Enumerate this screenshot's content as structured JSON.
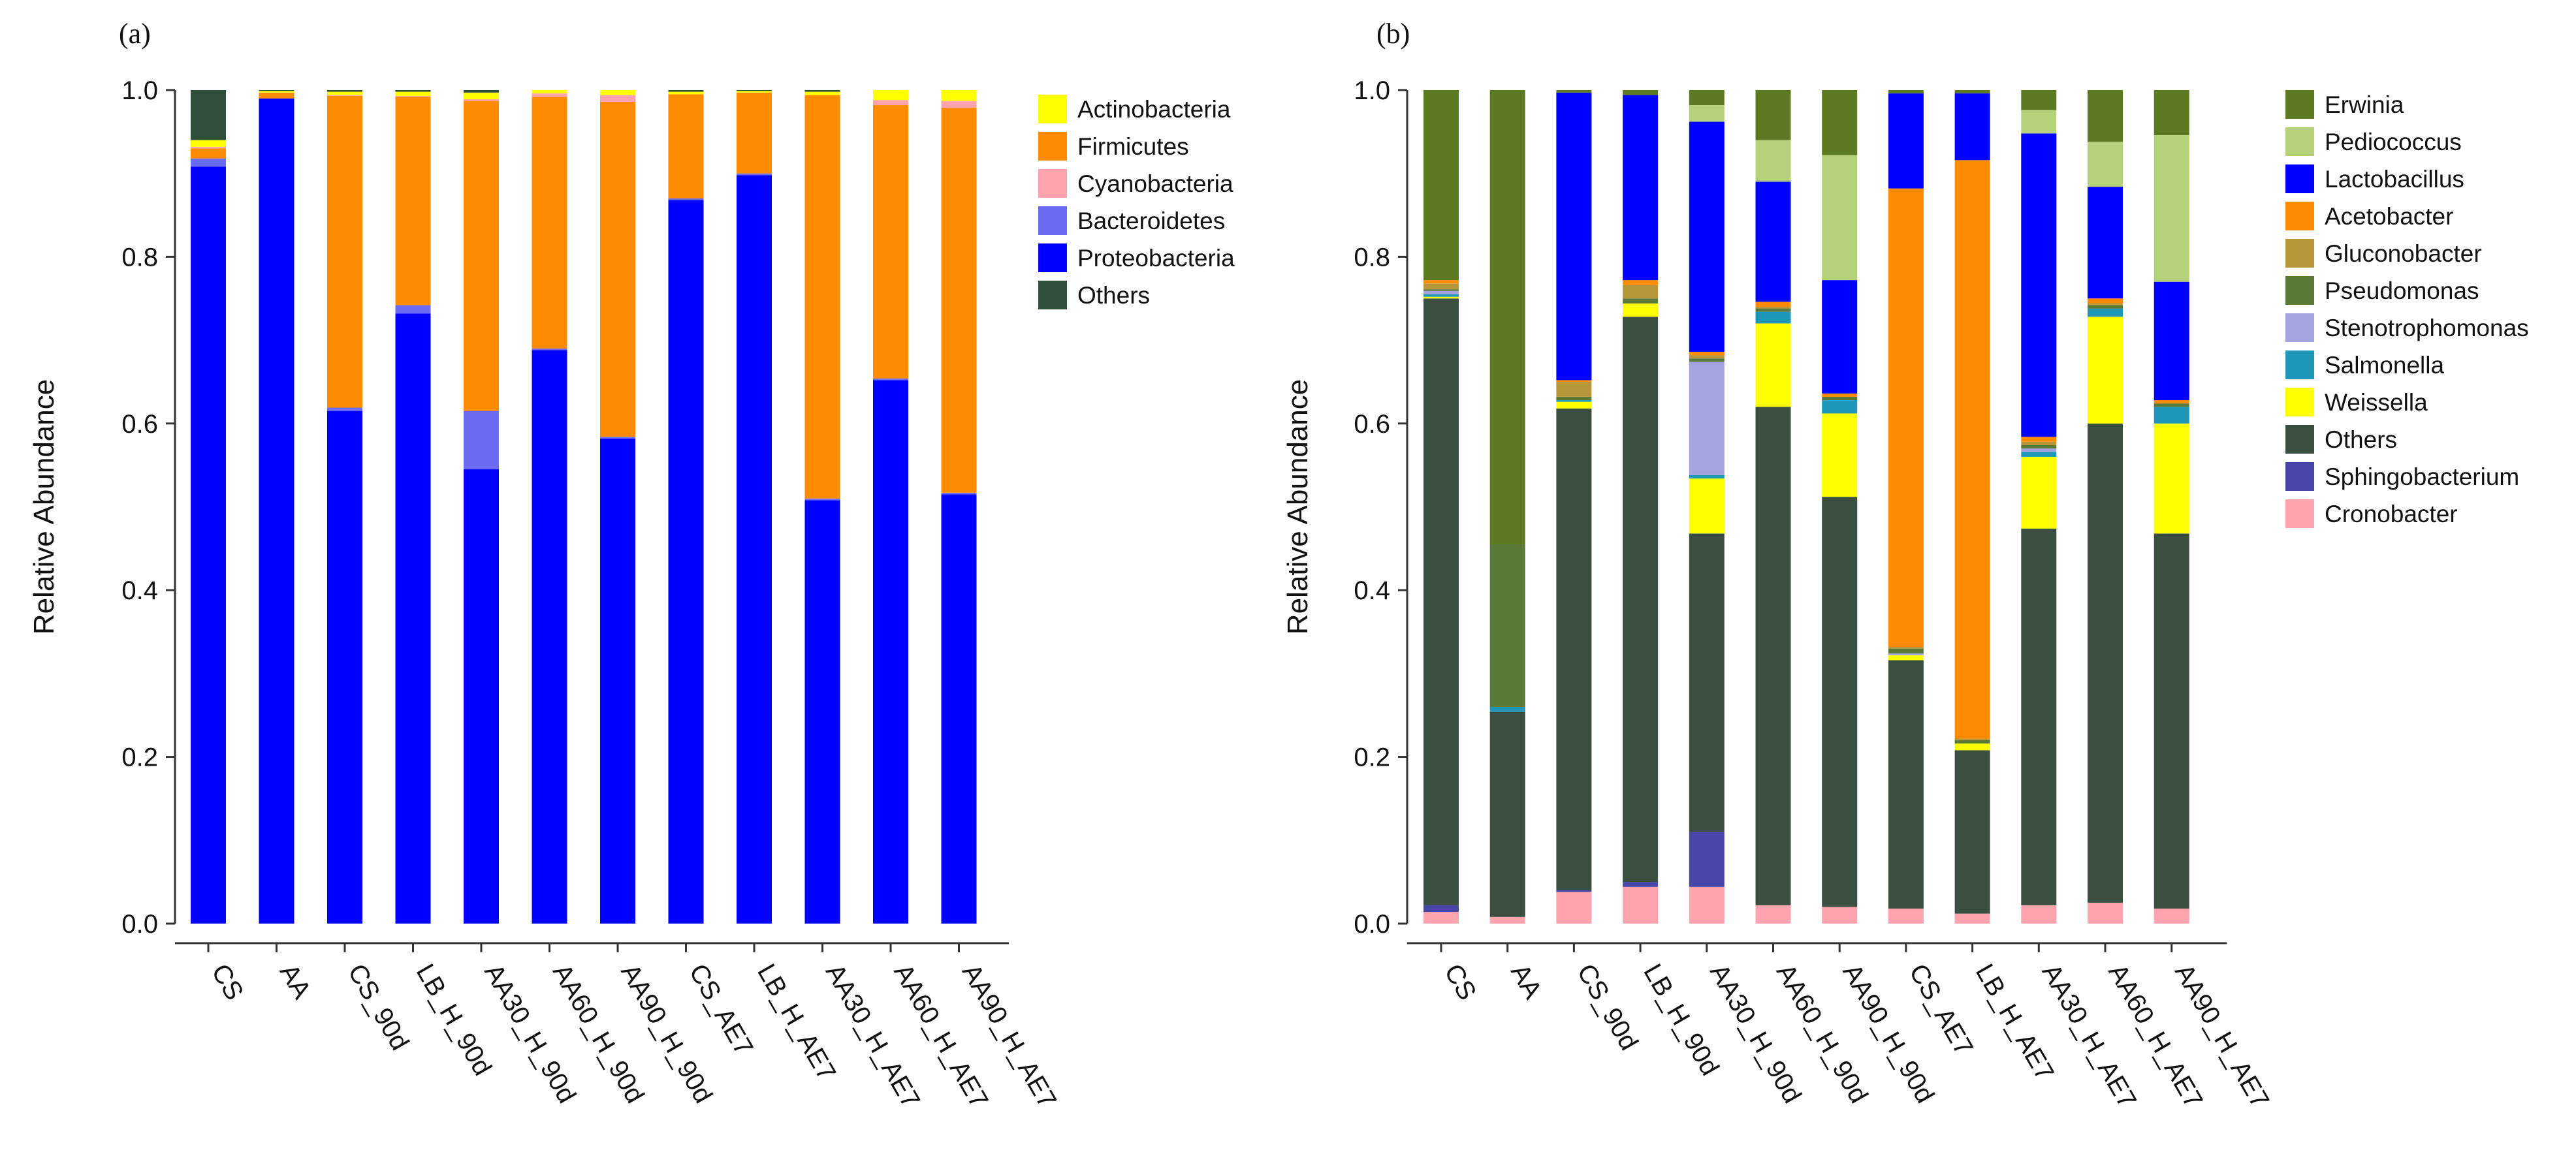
{
  "chart_data": [
    {
      "panel": "(a)",
      "type": "stacked-bar",
      "title": "",
      "xlabel": "",
      "ylabel": "Relative Abundance",
      "ylim": [
        0,
        1.0
      ],
      "yticks": [
        "0.0",
        "0.2",
        "0.4",
        "0.6",
        "0.8",
        "1.0"
      ],
      "categories": [
        "CS",
        "AA",
        "CS_90d",
        "LB_H_90d",
        "AA30_H_90d",
        "AA60_H_90d",
        "AA90_H_90d",
        "CS_AE7",
        "LB_H_AE7",
        "AA30_H_AE7",
        "AA60_H_AE7",
        "AA90_H_AE7"
      ],
      "legend_position": "right",
      "series": [
        {
          "name": "Proteobacteria",
          "color": "#0000ff",
          "values": [
            0.908,
            0.99,
            0.615,
            0.732,
            0.545,
            0.688,
            0.582,
            0.868,
            0.898,
            0.508,
            0.652,
            0.515
          ]
        },
        {
          "name": "Bacteroidetes",
          "color": "#6b6bf5",
          "values": [
            0.01,
            0.0,
            0.004,
            0.01,
            0.07,
            0.002,
            0.002,
            0.002,
            0.002,
            0.002,
            0.002,
            0.002
          ]
        },
        {
          "name": "Firmicutes",
          "color": "#ff8c00",
          "values": [
            0.012,
            0.007,
            0.374,
            0.25,
            0.372,
            0.302,
            0.402,
            0.125,
            0.097,
            0.484,
            0.328,
            0.462
          ]
        },
        {
          "name": "Cyanobacteria",
          "color": "#ffa3ae",
          "values": [
            0.002,
            0.0,
            0.001,
            0.001,
            0.002,
            0.004,
            0.008,
            0.0,
            0.0,
            0.0,
            0.006,
            0.008
          ]
        },
        {
          "name": "Actinobacteria",
          "color": "#ffff00",
          "values": [
            0.008,
            0.002,
            0.004,
            0.005,
            0.008,
            0.004,
            0.006,
            0.003,
            0.002,
            0.004,
            0.012,
            0.013
          ]
        },
        {
          "name": "Others",
          "color": "#2f4f3b",
          "values": [
            0.06,
            0.001,
            0.002,
            0.002,
            0.003,
            0.0,
            0.0,
            0.002,
            0.001,
            0.002,
            0.0,
            0.0
          ]
        }
      ],
      "legend": [
        "Actinobacteria",
        "Firmicutes",
        "Cyanobacteria",
        "Bacteroidetes",
        "Proteobacteria",
        "Others"
      ]
    },
    {
      "panel": "(b)",
      "type": "stacked-bar",
      "title": "",
      "xlabel": "",
      "ylabel": "Relative Abundance",
      "ylim": [
        0,
        1.0
      ],
      "yticks": [
        "0.0",
        "0.2",
        "0.4",
        "0.6",
        "0.8",
        "1.0"
      ],
      "categories": [
        "CS",
        "AA",
        "CS_90d",
        "LB_H_90d",
        "AA30_H_90d",
        "AA60_H_90d",
        "AA90_H_90d",
        "CS_AE7",
        "LB_H_AE7",
        "AA30_H_AE7",
        "AA60_H_AE7",
        "AA90_H_AE7"
      ],
      "legend_position": "right",
      "series": [
        {
          "name": "Cronobacter",
          "color": "#ffa3ae",
          "values": [
            0.014,
            0.008,
            0.038,
            0.044,
            0.044,
            0.022,
            0.02,
            0.018,
            0.012,
            0.022,
            0.025,
            0.018
          ]
        },
        {
          "name": "Sphingobacterium",
          "color": "#4747a8",
          "values": [
            0.008,
            0.0,
            0.002,
            0.006,
            0.066,
            0.0,
            0.0,
            0.0,
            0.0,
            0.0,
            0.0,
            0.0
          ]
        },
        {
          "name": "Others",
          "color": "#3b4f40",
          "values": [
            0.728,
            0.246,
            0.578,
            0.678,
            0.358,
            0.598,
            0.492,
            0.298,
            0.196,
            0.452,
            0.575,
            0.45
          ]
        },
        {
          "name": "Weissella",
          "color": "#ffff00",
          "values": [
            0.002,
            0.0,
            0.008,
            0.016,
            0.066,
            0.1,
            0.1,
            0.006,
            0.008,
            0.086,
            0.128,
            0.132
          ]
        },
        {
          "name": "Salmonella",
          "color": "#1f97b8",
          "values": [
            0.003,
            0.006,
            0.002,
            0.0,
            0.004,
            0.014,
            0.016,
            0.0,
            0.0,
            0.006,
            0.01,
            0.02
          ]
        },
        {
          "name": "Stenotrophomonas",
          "color": "#a3a3e0",
          "values": [
            0.004,
            0.0,
            0.0,
            0.0,
            0.136,
            0.0,
            0.0,
            0.002,
            0.0,
            0.004,
            0.0,
            0.0
          ]
        },
        {
          "name": "Pseudomonas",
          "color": "#5b7a3a",
          "values": [
            0.002,
            0.195,
            0.004,
            0.006,
            0.004,
            0.004,
            0.004,
            0.006,
            0.004,
            0.004,
            0.004,
            0.004
          ]
        },
        {
          "name": "Gluconobacter",
          "color": "#b8963a",
          "values": [
            0.007,
            0.0,
            0.018,
            0.016,
            0.004,
            0.002,
            0.0,
            0.002,
            0.002,
            0.004,
            0.002,
            0.0
          ]
        },
        {
          "name": "Acetobacter",
          "color": "#ff8c00",
          "values": [
            0.004,
            0.0,
            0.002,
            0.006,
            0.004,
            0.006,
            0.004,
            0.55,
            0.694,
            0.006,
            0.006,
            0.004
          ]
        },
        {
          "name": "Lactobacillus",
          "color": "#0000ff",
          "values": [
            0.0,
            0.0,
            0.345,
            0.222,
            0.276,
            0.144,
            0.136,
            0.114,
            0.08,
            0.364,
            0.134,
            0.142
          ]
        },
        {
          "name": "Pediococcus",
          "color": "#b5d27a",
          "values": [
            0.0,
            0.0,
            0.0,
            0.0,
            0.02,
            0.05,
            0.15,
            0.0,
            0.0,
            0.028,
            0.054,
            0.176
          ]
        },
        {
          "name": "Erwinia",
          "color": "#5b7a22",
          "values": [
            0.228,
            0.545,
            0.003,
            0.006,
            0.018,
            0.06,
            0.078,
            0.004,
            0.004,
            0.024,
            0.062,
            0.054
          ]
        }
      ],
      "legend": [
        "Erwinia",
        "Pediococcus",
        "Lactobacillus",
        "Acetobacter",
        "Gluconobacter",
        "Pseudomonas",
        "Stenotrophomonas",
        "Salmonella",
        "Weissella",
        "Others",
        "Sphingobacterium",
        "Cronobacter"
      ]
    }
  ]
}
